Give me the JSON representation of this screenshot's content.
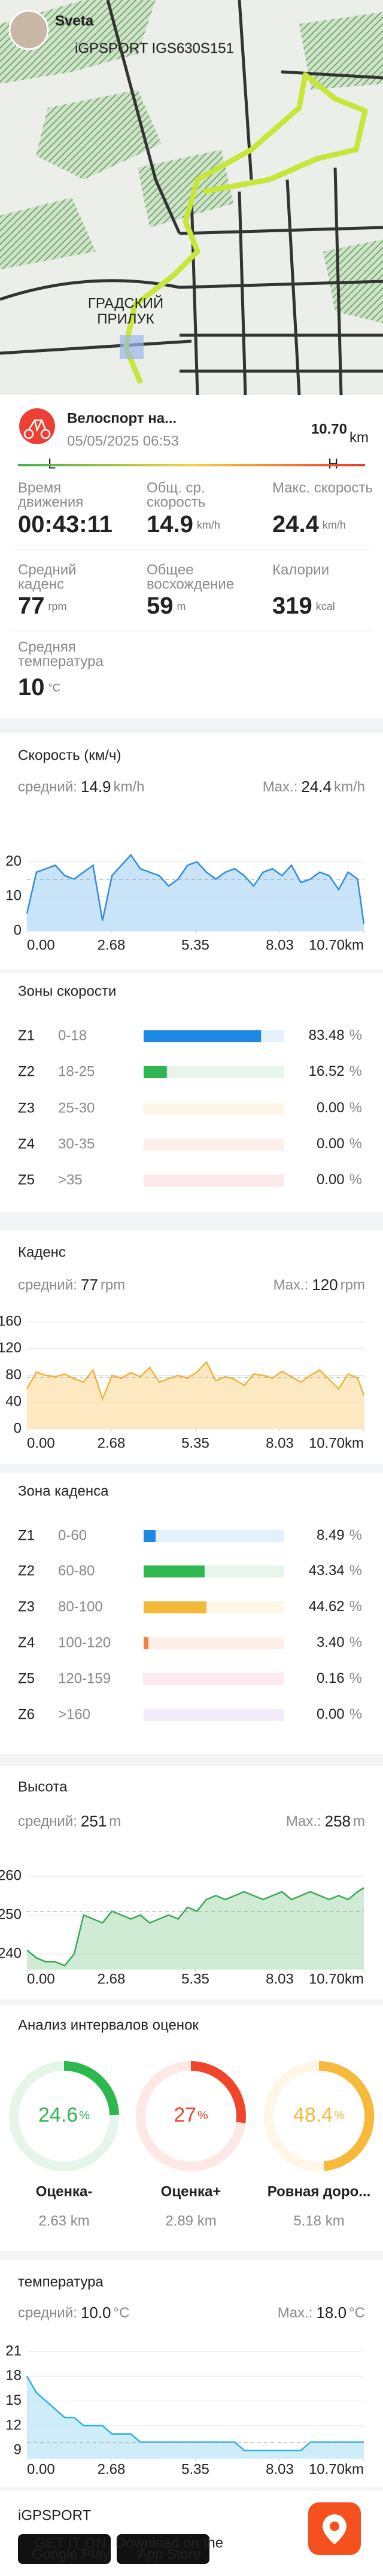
{
  "header": {
    "user": "Sveta",
    "device": "iGPSPORT IGS630S151"
  },
  "map": {
    "place_lines": [
      "ГРАДСКИЙ",
      "ПРИЛУК"
    ]
  },
  "activity": {
    "title": "Велоспорт на...",
    "date": "05/05/2025 06:53",
    "distance": "10.70",
    "distance_unit": "km",
    "low": "L",
    "high": "H",
    "stats": [
      [
        {
          "label": [
            "Время",
            "движения"
          ],
          "value": "00:43:11"
        },
        {
          "label": [
            "Общ. ср.",
            "скорость"
          ],
          "value": "14.9",
          "unit": "km/h"
        },
        {
          "label": [
            "Макс. скорость"
          ],
          "value": "24.4",
          "unit": "km/h"
        }
      ],
      [
        {
          "label": [
            "Средний",
            "каденс"
          ],
          "value": "77",
          "unit": "rpm"
        },
        {
          "label": [
            "Общее",
            "восхождение"
          ],
          "value": "59",
          "unit": "m"
        },
        {
          "label": [
            "Калории"
          ],
          "value": "319",
          "unit": "kcal"
        }
      ],
      [
        {
          "label": [
            "Средняя",
            "температура"
          ],
          "value": "10",
          "unit": "°C"
        }
      ]
    ]
  },
  "chart_data": [
    {
      "type": "line",
      "title": "Скорость (км/ч)",
      "avg_label": "средний:",
      "avg": 14.9,
      "max_label": "Max.:",
      "max": 24.4,
      "unit": "km/h",
      "color": "#2f8de4",
      "fill": "#bcdcf7",
      "x": [
        0,
        0.3,
        0.6,
        0.9,
        1.2,
        1.5,
        1.8,
        2.1,
        2.4,
        2.7,
        3,
        3.3,
        3.6,
        3.9,
        4.2,
        4.5,
        4.8,
        5.1,
        5.4,
        5.7,
        6,
        6.3,
        6.6,
        6.9,
        7.2,
        7.5,
        7.8,
        8.1,
        8.4,
        8.7,
        9,
        9.3,
        9.6,
        9.9,
        10.2,
        10.5,
        10.7
      ],
      "values": [
        5,
        17,
        18,
        19,
        16,
        15,
        17,
        19,
        3,
        16,
        19,
        22,
        18,
        17,
        16,
        13,
        15,
        19,
        20,
        17,
        15,
        17,
        18,
        16,
        13,
        17,
        18,
        16,
        19,
        14,
        15,
        17,
        16,
        12,
        17,
        15,
        2
      ],
      "xlim": [
        0,
        10.7
      ],
      "xticks": [
        {
          "value": 0,
          "label": "0.00"
        },
        2.68,
        5.35,
        8.03,
        {
          "value": 10.7,
          "label": "10.70km"
        }
      ],
      "ylim": [
        0,
        26
      ],
      "yticks": [
        0,
        10,
        20
      ],
      "grid": true
    },
    {
      "type": "line",
      "title": "Каденс",
      "avg_label": "средний:",
      "avg": 77,
      "max_label": "Max.:",
      "max": 120,
      "unit": "rpm",
      "color": "#f0b43c",
      "fill": "#fbe4b3",
      "x": [
        0,
        0.3,
        0.6,
        0.9,
        1.2,
        1.5,
        1.8,
        2.1,
        2.4,
        2.7,
        3,
        3.3,
        3.6,
        3.9,
        4.2,
        4.5,
        4.8,
        5.1,
        5.4,
        5.7,
        6,
        6.3,
        6.6,
        6.9,
        7.2,
        7.5,
        7.8,
        8.1,
        8.4,
        8.7,
        9,
        9.3,
        9.6,
        9.9,
        10.2,
        10.5,
        10.7
      ],
      "values": [
        60,
        85,
        80,
        78,
        82,
        75,
        70,
        88,
        45,
        80,
        76,
        84,
        78,
        92,
        70,
        75,
        80,
        76,
        85,
        100,
        72,
        78,
        74,
        65,
        82,
        80,
        76,
        86,
        78,
        70,
        80,
        88,
        74,
        60,
        82,
        76,
        50
      ],
      "xlim": [
        0,
        10.7
      ],
      "xticks": [
        {
          "value": 0,
          "label": "0.00"
        },
        2.68,
        5.35,
        8.03,
        {
          "value": 10.7,
          "label": "10.70km"
        }
      ],
      "ylim": [
        0,
        160
      ],
      "yticks": [
        0,
        40,
        80,
        120,
        160
      ],
      "grid": true
    },
    {
      "type": "line",
      "title": "Высота",
      "avg_label": "средний:",
      "avg": 251,
      "max_label": "Max.:",
      "max": 258,
      "unit": "m",
      "color": "#3aa757",
      "fill": "#c3e6c9",
      "x": [
        0,
        0.3,
        0.6,
        0.9,
        1.2,
        1.5,
        1.8,
        2.1,
        2.4,
        2.7,
        3,
        3.3,
        3.6,
        3.9,
        4.2,
        4.5,
        4.8,
        5.1,
        5.4,
        5.7,
        6,
        6.3,
        6.6,
        6.9,
        7.2,
        7.5,
        7.8,
        8.1,
        8.4,
        8.7,
        9,
        9.3,
        9.6,
        9.9,
        10.2,
        10.5,
        10.7
      ],
      "values": [
        241,
        239,
        238,
        238,
        237,
        240,
        250,
        249,
        248,
        251,
        250,
        249,
        250,
        248,
        249,
        250,
        249,
        252,
        251,
        254,
        255,
        254,
        255,
        256,
        255,
        254,
        255,
        256,
        254,
        255,
        256,
        255,
        254,
        255,
        254,
        256,
        257
      ],
      "xlim": [
        0,
        10.7
      ],
      "xticks": [
        {
          "value": 0,
          "label": "0.00"
        },
        2.68,
        5.35,
        8.03,
        {
          "value": 10.7,
          "label": "10.70km"
        }
      ],
      "ylim": [
        236,
        262
      ],
      "yticks": [
        240,
        250,
        260
      ],
      "grid": true
    },
    {
      "type": "line",
      "title": "температура",
      "avg_label": "средний:",
      "avg": {
        "value": 10,
        "label": "10.0"
      },
      "max_label": "Max.:",
      "max": {
        "value": 18,
        "label": "18.0"
      },
      "unit": "°C",
      "color": "#29b3e6",
      "fill": "#c2e9f8",
      "x": [
        0,
        0.3,
        0.6,
        0.9,
        1.2,
        1.5,
        1.8,
        2.1,
        2.4,
        2.7,
        3,
        3.3,
        3.6,
        3.9,
        4.2,
        4.5,
        4.8,
        5.1,
        5.4,
        5.7,
        6,
        6.3,
        6.6,
        6.9,
        7.2,
        7.5,
        7.8,
        8.1,
        8.4,
        8.7,
        9,
        9.3,
        9.6,
        9.9,
        10.2,
        10.5,
        10.7
      ],
      "values": [
        18,
        16,
        15,
        14,
        13,
        13,
        12,
        12,
        12,
        11,
        11,
        11,
        10,
        10,
        10,
        10,
        10,
        10,
        10,
        10,
        10,
        10,
        10,
        9,
        9,
        9,
        9,
        9,
        9,
        9,
        10,
        10,
        10,
        10,
        10,
        10,
        10
      ],
      "xlim": [
        0,
        10.7
      ],
      "xticks": [
        {
          "value": 0,
          "label": "0.00"
        },
        2.68,
        5.35,
        8.03,
        {
          "value": 10.7,
          "label": "10.70km"
        }
      ],
      "ylim": [
        8,
        21
      ],
      "yticks": [
        9,
        12,
        15,
        18,
        21
      ],
      "grid": true
    }
  ],
  "speed_zones": {
    "title": "Зоны скорости",
    "unit": "%",
    "rows": [
      {
        "zone": "Z1",
        "range": "0-18",
        "percent": 83.48,
        "percent_label": "83.48",
        "color": "#1e88e5"
      },
      {
        "zone": "Z2",
        "range": "18-25",
        "percent": 16.52,
        "percent_label": "16.52",
        "color": "#2eb84f"
      },
      {
        "zone": "Z3",
        "range": "25-30",
        "percent": 0,
        "percent_label": "0.00",
        "color": "#f5b93a"
      },
      {
        "zone": "Z4",
        "range": "30-35",
        "percent": 0,
        "percent_label": "0.00",
        "color": "#f57c45"
      },
      {
        "zone": "Z5",
        "range": ">35",
        "percent": 0,
        "percent_label": "0.00",
        "color": "#ef4b4b"
      }
    ]
  },
  "cadence_zones": {
    "title": "Зона каденса",
    "unit": "%",
    "rows": [
      {
        "zone": "Z1",
        "range": "0-60",
        "percent": 8.49,
        "percent_label": "8.49",
        "color": "#1e88e5"
      },
      {
        "zone": "Z2",
        "range": "60-80",
        "percent": 43.34,
        "percent_label": "43.34",
        "color": "#2eb84f"
      },
      {
        "zone": "Z3",
        "range": "80-100",
        "percent": 44.62,
        "percent_label": "44.62",
        "color": "#f5b93a"
      },
      {
        "zone": "Z4",
        "range": "100-120",
        "percent": 3.4,
        "percent_label": "3.40",
        "color": "#f57c45"
      },
      {
        "zone": "Z5",
        "range": "120-159",
        "percent": 0.16,
        "percent_label": "0.16",
        "color": "#ef4b7a"
      },
      {
        "zone": "Z6",
        "range": ">160",
        "percent": 0,
        "percent_label": "0.00",
        "color": "#a05ce6"
      }
    ]
  },
  "intervals": {
    "title": "Анализ интервалов оценок",
    "unit": "%",
    "items": [
      {
        "name": "Оценка-",
        "percent": 24.6,
        "distance": "2.63 km",
        "color": "#2db84d"
      },
      {
        "name": "Оценка+",
        "percent": 27,
        "distance": "2.89 km",
        "color": "#f0452b"
      },
      {
        "name": "Ровная доро...",
        "percent": 48.4,
        "distance": "5.18 km",
        "color": "#f6b93b"
      }
    ]
  },
  "footer": {
    "brand": "iGPSPORT",
    "google": [
      "GET IT ON",
      "Google Play"
    ],
    "apple": [
      "Download on the",
      "App Store"
    ]
  }
}
